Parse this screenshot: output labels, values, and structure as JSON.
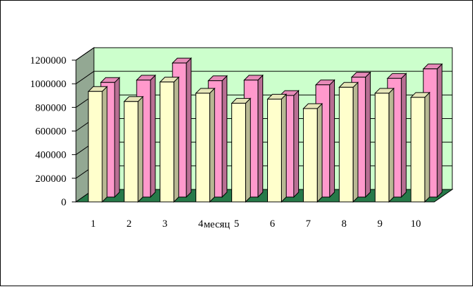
{
  "chart_data": {
    "type": "bar",
    "title": "",
    "xlabel": "месяц",
    "ylabel": "",
    "ylim": [
      0,
      1200000
    ],
    "yticks": [
      0,
      200000,
      400000,
      600000,
      800000,
      1000000,
      1200000
    ],
    "ytick_labels": [
      "0",
      "200000",
      "400000",
      "600000",
      "800000",
      "1000000",
      "1200000"
    ],
    "categories": [
      "1",
      "2",
      "3",
      "4",
      "5",
      "6",
      "7",
      "8",
      "9",
      "10"
    ],
    "series": [
      {
        "values": [
          935000,
          850000,
          1015000,
          920000,
          835000,
          870000,
          790000,
          970000,
          920000,
          885000
        ]
      },
      {
        "values": [
          970000,
          990000,
          1135000,
          985000,
          990000,
          860000,
          950000,
          1015000,
          1005000,
          1085000
        ]
      }
    ],
    "grid": true,
    "legend": "none",
    "colors": {
      "series_front": "#ffffcc",
      "series_back": "#ff99cc",
      "wall": "#ccffcc",
      "side_wall": "#93a893",
      "floor": "#267a49"
    }
  }
}
